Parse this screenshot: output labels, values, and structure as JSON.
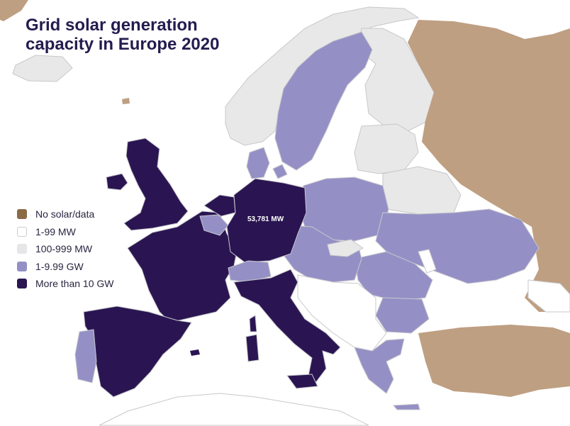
{
  "title": {
    "line1": "Grid solar generation",
    "line2": "capacity in Europe 2020"
  },
  "legend": [
    {
      "label": "No solar/data",
      "color": "#8b6b45"
    },
    {
      "label": "1-99 MW",
      "color": "#ffffff"
    },
    {
      "label": "100-999 MW",
      "color": "#e6e6e8"
    },
    {
      "label": "1-9.99 GW",
      "color": "#9490c6"
    },
    {
      "label": "More than 10 GW",
      "color": "#2a1552"
    }
  ],
  "colors": {
    "sea": "#ffffff",
    "no_data": "#bf9f82",
    "tier_1_99_mw": "#ffffff",
    "tier_100_999_mw": "#e8e8e8",
    "tier_1_9_99_gw": "#9490c6",
    "tier_10_gw_plus": "#2a1552",
    "border": "#c8c8cc",
    "title": "#241c4f"
  },
  "callouts": {
    "germany": "53,781 MW"
  }
}
